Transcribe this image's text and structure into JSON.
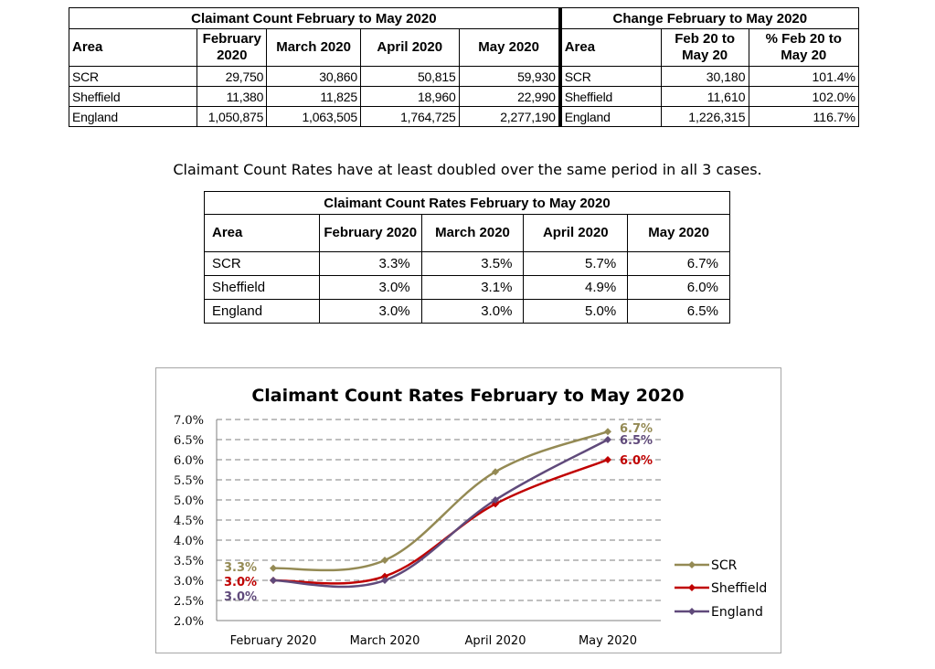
{
  "change_table": {
    "group_left": "Claimant Count February to May 2020",
    "group_right": "Change February to May 2020",
    "headers_left": [
      "Area",
      "February 2020",
      "March 2020",
      "April 2020",
      "May 2020"
    ],
    "headers_right": [
      "Area",
      "Feb 20 to May 20",
      "% Feb 20 to May 20"
    ],
    "rows": [
      {
        "area": "SCR",
        "feb": "29,750",
        "mar": "30,860",
        "apr": "50,815",
        "may": "59,930",
        "area2": "SCR",
        "change": "30,180",
        "pct": "101.4%"
      },
      {
        "area": "Sheffield",
        "feb": "11,380",
        "mar": "11,825",
        "apr": "18,960",
        "may": "22,990",
        "area2": "Sheffield",
        "change": "11,610",
        "pct": "102.0%"
      },
      {
        "area": "England",
        "feb": "1,050,875",
        "mar": "1,063,505",
        "apr": "1,764,725",
        "may": "2,277,190",
        "area2": "England",
        "change": "1,226,315",
        "pct": "116.7%"
      }
    ]
  },
  "sentence": "Claimant Count Rates have at least doubled over the same period in all 3 cases.",
  "rates_table": {
    "title": "Claimant Count Rates February to May 2020",
    "headers": [
      "Area",
      "February 2020",
      "March 2020",
      "April 2020",
      "May 2020"
    ],
    "rows": [
      {
        "area": "SCR",
        "feb": "3.3%",
        "mar": "3.5%",
        "apr": "5.7%",
        "may": "6.7%"
      },
      {
        "area": "Sheffield",
        "feb": "3.0%",
        "mar": "3.1%",
        "apr": "4.9%",
        "may": "6.0%"
      },
      {
        "area": "England",
        "feb": "3.0%",
        "mar": "3.0%",
        "apr": "5.0%",
        "may": "6.5%"
      }
    ]
  },
  "chart_data": {
    "type": "line",
    "title": "Claimant Count Rates February to May 2020",
    "categories": [
      "February 2020",
      "March 2020",
      "April 2020",
      "May 2020"
    ],
    "ylim": [
      2.0,
      7.0
    ],
    "yticks": [
      "2.0%",
      "2.5%",
      "3.0%",
      "3.5%",
      "4.0%",
      "4.5%",
      "5.0%",
      "5.5%",
      "6.0%",
      "6.5%",
      "7.0%"
    ],
    "grid": true,
    "legend": "right",
    "series": [
      {
        "name": "SCR",
        "values": [
          3.3,
          3.5,
          5.7,
          6.7
        ],
        "color": "#948a54",
        "start_label": "3.3%",
        "end_label": "6.7%"
      },
      {
        "name": "Sheffield",
        "values": [
          3.0,
          3.1,
          4.9,
          6.0
        ],
        "color": "#c00000",
        "start_label": "3.0%",
        "end_label": "6.0%"
      },
      {
        "name": "England",
        "values": [
          3.0,
          3.0,
          5.0,
          6.5
        ],
        "color": "#604a7b",
        "start_label": "3.0%",
        "end_label": "6.5%"
      }
    ]
  }
}
